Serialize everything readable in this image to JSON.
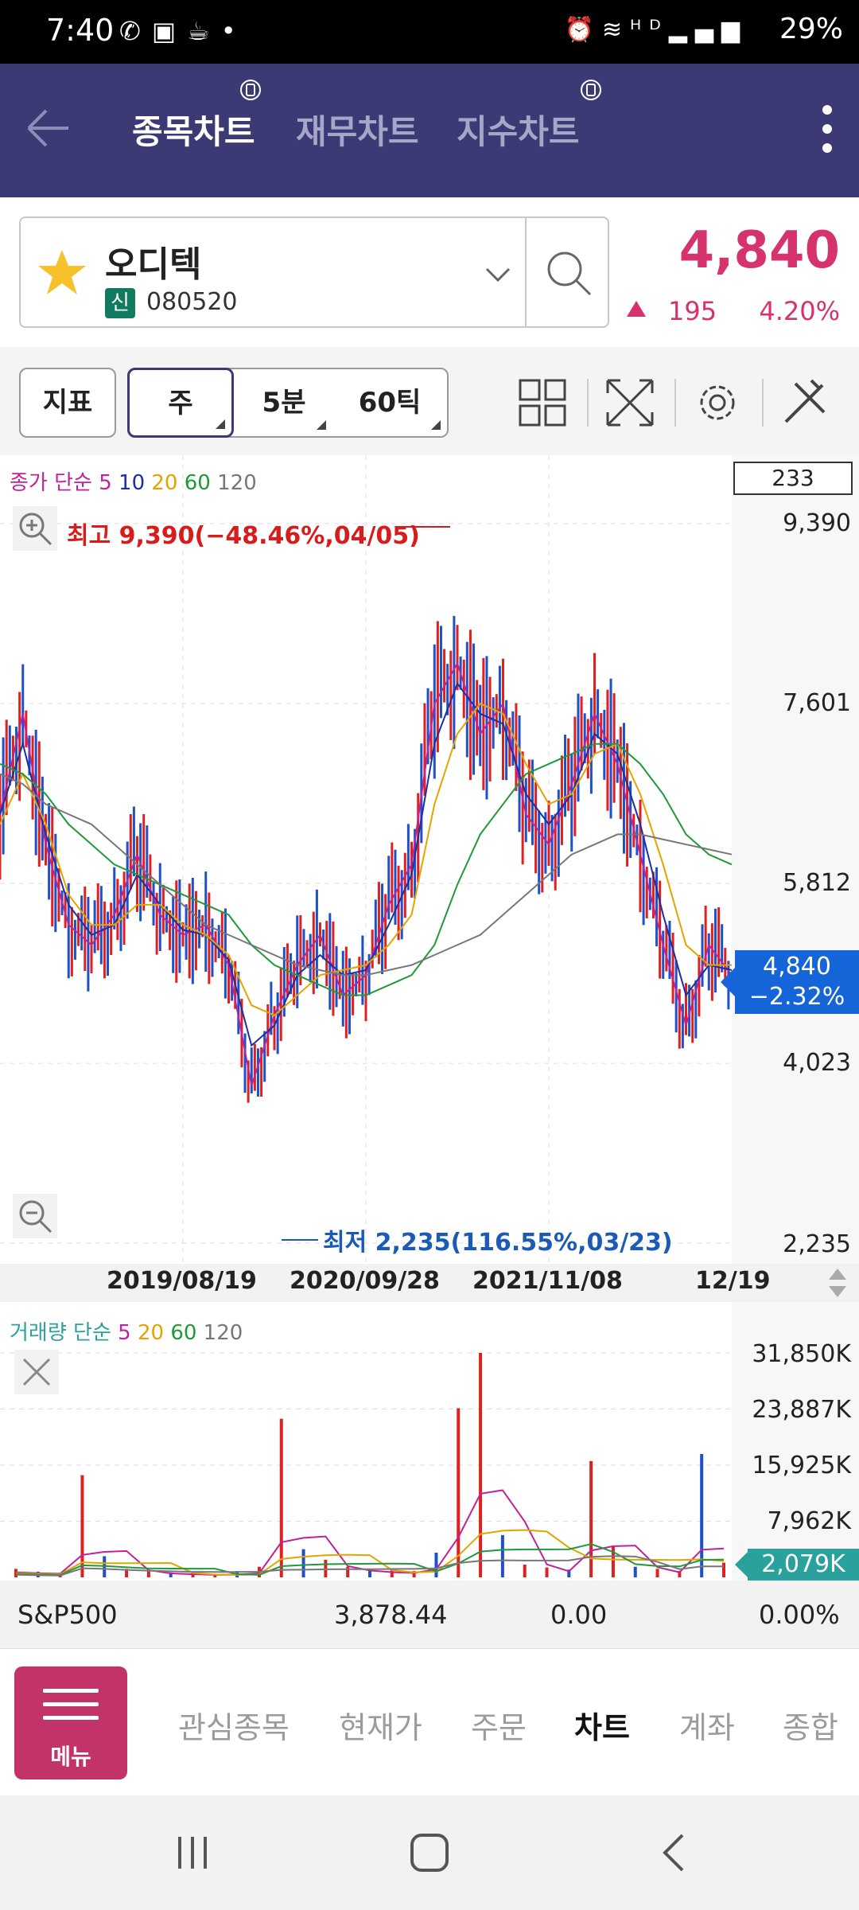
{
  "status_bar": {
    "time": "7:40",
    "left_icons": [
      "video-call-icon",
      "gallery-icon",
      "coffee-icon",
      "dot-icon"
    ],
    "right_icons": [
      "alarm-icon",
      "wifi-icon",
      "hd-voice-icon",
      "signal-icon"
    ],
    "battery": "29%"
  },
  "header": {
    "tabs": [
      {
        "label": "종목차트",
        "active": true
      },
      {
        "label": "재무차트",
        "active": false
      },
      {
        "label": "지수차트",
        "active": false
      }
    ]
  },
  "stock": {
    "name": "오디텍",
    "badge": "신",
    "code": "080520",
    "price": "4,840",
    "change": "195",
    "change_pct": "4.20%"
  },
  "toolbar": {
    "indicator_label": "지표",
    "periods": [
      {
        "label": "주",
        "active": true
      },
      {
        "label": "5분",
        "active": false
      },
      {
        "label": "60틱",
        "active": false
      }
    ]
  },
  "chart": {
    "ma_legend_prefix": "종가 단순",
    "ma_periods": [
      {
        "label": "5",
        "color": "#c0229b"
      },
      {
        "label": "10",
        "color": "#1a2fa8"
      },
      {
        "label": "20",
        "color": "#e4a400"
      },
      {
        "label": "60",
        "color": "#1f9a3a"
      },
      {
        "label": "120",
        "color": "#777777"
      }
    ],
    "count": "233",
    "high_label": "최고 9,390(−48.46%,04/05)",
    "low_label": "최저 2,235(116.55%,03/23)",
    "current_price": "4,840",
    "current_pct": "−2.32%",
    "x_labels": [
      "2019/08/19",
      "2020/09/28",
      "2021/11/08",
      "12/19"
    ]
  },
  "chart_data": [
    {
      "type": "line",
      "title": "",
      "x_labels": [
        "2019/08/19",
        "2020/09/28",
        "2021/11/08",
        "12/19"
      ],
      "y_ticks": [
        "9,390",
        "7,601",
        "5,812",
        "4,023",
        "2,235"
      ],
      "ylim": [
        2235,
        9390
      ],
      "series": [
        {
          "name": "5",
          "values": [
            6500,
            7500,
            6200,
            5400,
            5200,
            5500,
            6100,
            5500,
            5300,
            5400,
            5000,
            3800,
            4500,
            5000,
            5300,
            4700,
            4900,
            5600,
            6000,
            7600,
            8000,
            7300,
            7600,
            6500,
            6200,
            6800,
            7500,
            7000,
            6100,
            5200,
            4400,
            5200,
            4900
          ]
        },
        {
          "name": "10",
          "values": [
            6500,
            7200,
            6300,
            5600,
            5300,
            5400,
            5900,
            5600,
            5350,
            5300,
            5050,
            4200,
            4400,
            4900,
            5100,
            4900,
            4950,
            5400,
            5900,
            7200,
            7800,
            7500,
            7400,
            6700,
            6400,
            6700,
            7300,
            7100,
            6400,
            5500,
            4700,
            5000,
            4950
          ]
        },
        {
          "name": "20",
          "values": [
            6400,
            6900,
            6400,
            5700,
            5400,
            5400,
            5600,
            5600,
            5400,
            5300,
            5100,
            4600,
            4500,
            4700,
            4900,
            4950,
            5000,
            5200,
            5500,
            6600,
            7300,
            7600,
            7500,
            7000,
            6600,
            6700,
            7100,
            7200,
            6700,
            6000,
            5200,
            5000,
            5000
          ]
        },
        {
          "name": "60",
          "values": [
            7000,
            6900,
            6700,
            6400,
            6200,
            6000,
            5900,
            5800,
            5700,
            5600,
            5500,
            5200,
            5000,
            4900,
            4800,
            4700,
            4700,
            4800,
            4900,
            5200,
            5800,
            6300,
            6600,
            6900,
            7000,
            7100,
            7200,
            7200,
            7000,
            6700,
            6300,
            6100,
            6000
          ]
        },
        {
          "name": "120",
          "values": [
            6900,
            6800,
            6600,
            6500,
            6400,
            6200,
            6000,
            5800,
            5600,
            5400,
            5300,
            5200,
            5100,
            5000,
            4950,
            4900,
            4900,
            4950,
            5000,
            5100,
            5200,
            5300,
            5500,
            5700,
            5900,
            6100,
            6200,
            6300,
            6300,
            6250,
            6200,
            6150,
            6100
          ]
        }
      ]
    },
    {
      "type": "bar",
      "title": "거래량",
      "y_ticks": [
        "31,850K",
        "23,887K",
        "15,925K",
        "7,962K"
      ],
      "ylim": [
        0,
        31850
      ],
      "current": "2,079K",
      "values": [
        1200,
        800,
        600,
        14500,
        3000,
        1200,
        900,
        700,
        600,
        500,
        900,
        1500,
        22500,
        4000,
        2500,
        1500,
        900,
        1300,
        900,
        3500,
        24000,
        31850,
        6000,
        1800,
        1400,
        1100,
        16500,
        4500,
        1500,
        1200,
        900,
        17500,
        2079
      ],
      "ma_legend_prefix": "거래량 단순",
      "ma_periods": [
        {
          "label": "5",
          "color": "#c0229b"
        },
        {
          "label": "20",
          "color": "#e4a400"
        },
        {
          "label": "60",
          "color": "#1f9a3a"
        },
        {
          "label": "120",
          "color": "#777777"
        }
      ]
    }
  ],
  "index_row": {
    "name": "S&P500",
    "value": "3,878.44",
    "change": "0.00",
    "pct": "0.00%"
  },
  "bottom_nav": {
    "menu_label": "메뉴",
    "items": [
      {
        "label": "관심종목",
        "active": false
      },
      {
        "label": "현재가",
        "active": false
      },
      {
        "label": "주문",
        "active": false
      },
      {
        "label": "차트",
        "active": true
      },
      {
        "label": "계좌",
        "active": false
      },
      {
        "label": "종합",
        "active": false
      }
    ]
  }
}
